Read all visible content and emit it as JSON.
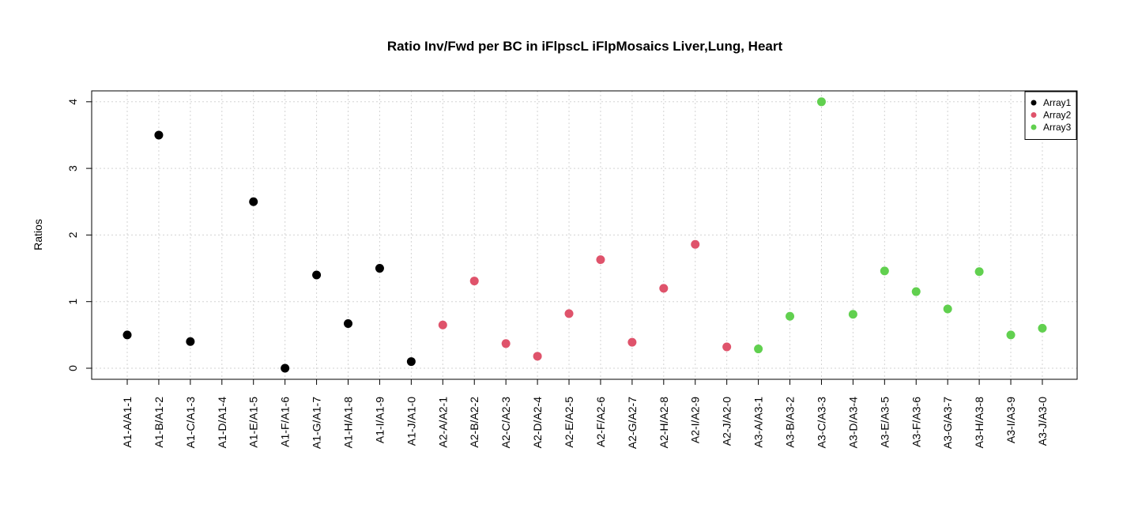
{
  "chart_data": {
    "type": "scatter",
    "title": "Ratio Inv/Fwd per BC in iFlpscL iFlpMosaics Liver,Lung, Heart",
    "xlabel": "",
    "ylabel": "Ratios",
    "ylim": [
      0,
      4
    ],
    "yticks": [
      "0",
      "1",
      "2",
      "3",
      "4"
    ],
    "grid": true,
    "legend_position": "top-right",
    "categories": [
      "A1-A/A1-1",
      "A1-B/A1-2",
      "A1-C/A1-3",
      "A1-D/A1-4",
      "A1-E/A1-5",
      "A1-F/A1-6",
      "A1-G/A1-7",
      "A1-H/A1-8",
      "A1-I/A1-9",
      "A1-J/A1-0",
      "A2-A/A2-1",
      "A2-B/A2-2",
      "A2-C/A2-3",
      "A2-D/A2-4",
      "A2-E/A2-5",
      "A2-F/A2-6",
      "A2-G/A2-7",
      "A2-H/A2-8",
      "A2-I/A2-9",
      "A2-J/A2-0",
      "A3-A/A3-1",
      "A3-B/A3-2",
      "A3-C/A3-3",
      "A3-D/A3-4",
      "A3-E/A3-5",
      "A3-F/A3-6",
      "A3-G/A3-7",
      "A3-H/A3-8",
      "A3-I/A3-9",
      "A3-J/A3-0"
    ],
    "series": [
      {
        "name": "Array1",
        "color": "#000000",
        "start_index": 0,
        "values": [
          0.5,
          3.5,
          0.4,
          null,
          2.5,
          0.0,
          1.4,
          0.67,
          1.5,
          0.1
        ]
      },
      {
        "name": "Array2",
        "color": "#DF536B",
        "start_index": 10,
        "values": [
          0.65,
          1.31,
          0.37,
          0.18,
          0.82,
          1.63,
          0.39,
          1.2,
          1.86,
          0.32
        ]
      },
      {
        "name": "Array3",
        "color": "#61D04F",
        "start_index": 20,
        "values": [
          0.29,
          0.78,
          4.0,
          0.81,
          1.46,
          1.15,
          0.89,
          1.45,
          0.5,
          0.6
        ]
      }
    ]
  }
}
